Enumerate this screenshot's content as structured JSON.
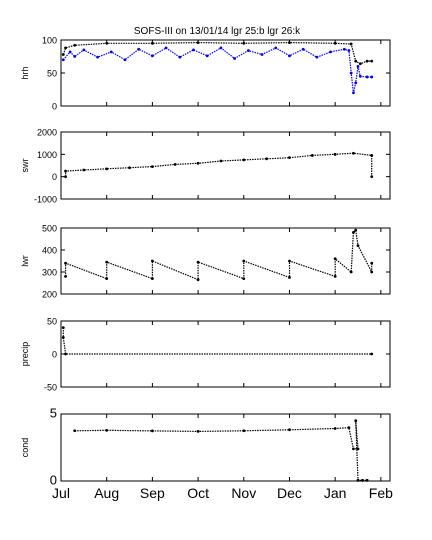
{
  "figure": {
    "title": "SOFS-III on 13/01/14 lgr 25:b lgr 26:k"
  },
  "chart_data": [
    {
      "type": "scatter",
      "ylabel": "hrh",
      "ylim": [
        0,
        100
      ],
      "yticks": [
        "0",
        "50",
        "100"
      ],
      "xlim": [
        0,
        7.2
      ],
      "series": [
        {
          "color": "#000000",
          "points": [
            [
              0.05,
              78
            ],
            [
              0.1,
              88
            ],
            [
              0.3,
              92
            ],
            [
              1.0,
              95
            ],
            [
              2.0,
              95
            ],
            [
              3.0,
              96
            ],
            [
              4.0,
              95
            ],
            [
              5.0,
              96
            ],
            [
              6.0,
              95
            ],
            [
              6.35,
              94
            ],
            [
              6.45,
              68
            ],
            [
              6.55,
              64
            ],
            [
              6.7,
              68
            ],
            [
              6.8,
              68
            ]
          ]
        },
        {
          "color": "#0000ff",
          "points": [
            [
              0.05,
              70
            ],
            [
              0.2,
              82
            ],
            [
              0.3,
              75
            ],
            [
              0.5,
              85
            ],
            [
              0.8,
              74
            ],
            [
              1.1,
              82
            ],
            [
              1.4,
              70
            ],
            [
              1.7,
              86
            ],
            [
              2.0,
              76
            ],
            [
              2.3,
              88
            ],
            [
              2.6,
              74
            ],
            [
              2.9,
              85
            ],
            [
              3.2,
              76
            ],
            [
              3.5,
              88
            ],
            [
              3.8,
              72
            ],
            [
              4.1,
              84
            ],
            [
              4.4,
              78
            ],
            [
              4.7,
              88
            ],
            [
              5.0,
              76
            ],
            [
              5.3,
              86
            ],
            [
              5.6,
              74
            ],
            [
              5.9,
              82
            ],
            [
              6.2,
              86
            ],
            [
              6.3,
              84
            ],
            [
              6.35,
              50
            ],
            [
              6.4,
              20
            ],
            [
              6.45,
              35
            ],
            [
              6.5,
              60
            ],
            [
              6.55,
              45
            ],
            [
              6.7,
              44
            ],
            [
              6.8,
              44
            ]
          ]
        }
      ]
    },
    {
      "type": "scatter",
      "ylabel": "swr",
      "ylim": [
        -1000,
        2000
      ],
      "yticks": [
        "-1000",
        "0",
        "1000",
        "2000"
      ],
      "xlim": [
        0,
        7.2
      ],
      "series": [
        {
          "color": "#000000",
          "points": [
            [
              0.1,
              0
            ],
            [
              0.1,
              250
            ],
            [
              0.5,
              300
            ],
            [
              1.0,
              350
            ],
            [
              1.5,
              400
            ],
            [
              2.0,
              450
            ],
            [
              2.5,
              550
            ],
            [
              3.0,
              600
            ],
            [
              3.5,
              700
            ],
            [
              4.0,
              750
            ],
            [
              4.5,
              800
            ],
            [
              5.0,
              850
            ],
            [
              5.5,
              950
            ],
            [
              6.0,
              1000
            ],
            [
              6.4,
              1050
            ],
            [
              6.8,
              950
            ],
            [
              6.8,
              0
            ]
          ]
        }
      ]
    },
    {
      "type": "scatter",
      "ylabel": "lwr",
      "ylim": [
        200,
        500
      ],
      "yticks": [
        "200",
        "300",
        "400",
        "500"
      ],
      "xlim": [
        0,
        7.2
      ],
      "series": [
        {
          "color": "#000000",
          "points": [
            [
              0.1,
              280
            ],
            [
              0.1,
              340
            ],
            [
              1.0,
              270
            ],
            [
              1.0,
              345
            ],
            [
              2.0,
              270
            ],
            [
              2.0,
              350
            ],
            [
              3.0,
              265
            ],
            [
              3.0,
              345
            ],
            [
              4.0,
              270
            ],
            [
              4.0,
              350
            ],
            [
              5.0,
              275
            ],
            [
              5.0,
              350
            ],
            [
              6.0,
              280
            ],
            [
              6.0,
              360
            ],
            [
              6.35,
              300
            ],
            [
              6.4,
              480
            ],
            [
              6.45,
              490
            ],
            [
              6.5,
              420
            ],
            [
              6.8,
              300
            ],
            [
              6.8,
              340
            ]
          ]
        }
      ]
    },
    {
      "type": "scatter",
      "ylabel": "precip",
      "ylim": [
        -50,
        50
      ],
      "yticks": [
        "-50",
        "0",
        "50"
      ],
      "xlim": [
        0,
        7.2
      ],
      "series": [
        {
          "color": "#000000",
          "points": [
            [
              0.05,
              40
            ],
            [
              0.05,
              25
            ],
            [
              0.1,
              0
            ],
            [
              6.8,
              0
            ]
          ]
        }
      ]
    },
    {
      "type": "scatter",
      "ylabel": "cond",
      "ylim": [
        0,
        5
      ],
      "yticks": [
        "0",
        "5"
      ],
      "xlabels": [
        "Jul",
        "Aug",
        "Sep",
        "Oct",
        "Nov",
        "Dec",
        "Jan",
        "Feb"
      ],
      "xlim": [
        0,
        7.2
      ],
      "series": [
        {
          "color": "#000000",
          "points": [
            [
              0.3,
              3.75
            ],
            [
              1.0,
              3.78
            ],
            [
              2.0,
              3.74
            ],
            [
              3.0,
              3.7
            ],
            [
              4.0,
              3.75
            ],
            [
              5.0,
              3.82
            ],
            [
              6.0,
              3.92
            ],
            [
              6.3,
              3.98
            ],
            [
              6.4,
              2.4
            ],
            [
              6.5,
              2.4
            ],
            [
              6.45,
              4.5
            ],
            [
              6.5,
              0.05
            ],
            [
              6.6,
              0.05
            ],
            [
              6.7,
              0.05
            ]
          ]
        }
      ]
    }
  ]
}
